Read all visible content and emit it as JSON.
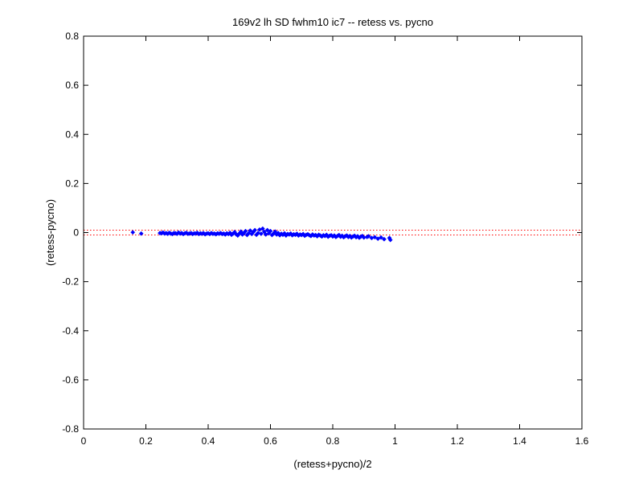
{
  "chart_data": {
    "type": "scatter",
    "title": "169v2 lh SD fwhm10 ic7 -- retess vs. pycno",
    "xlabel": "(retess+pycno)/2",
    "ylabel": "(retess-pycno)",
    "xlim": [
      0,
      1.6
    ],
    "ylim": [
      -0.8,
      0.8
    ],
    "xticks": [
      0,
      0.2,
      0.4,
      0.6,
      0.8,
      1,
      1.2,
      1.4,
      1.6
    ],
    "xtick_labels": [
      "0",
      "0.2",
      "0.4",
      "0.6",
      "0.8",
      "1",
      "1.2",
      "1.4",
      "1.6"
    ],
    "yticks": [
      -0.8,
      -0.6,
      -0.4,
      -0.2,
      0,
      0.2,
      0.4,
      0.6,
      0.8
    ],
    "ytick_labels": [
      "-0.8",
      "-0.6",
      "-0.4",
      "-0.2",
      "0",
      "0.2",
      "0.4",
      "0.6",
      "0.8"
    ],
    "grid": false,
    "reference_lines": [
      {
        "y": 0.01,
        "style": "dotted",
        "color": "#ff0000"
      },
      {
        "y": -0.01,
        "style": "dotted",
        "color": "#ff0000"
      }
    ],
    "series": [
      {
        "marker": "diamond",
        "color": "#0000ff",
        "points": [
          [
            0.158,
            0.001
          ],
          [
            0.185,
            -0.004
          ],
          [
            0.245,
            -0.002
          ],
          [
            0.25,
            -0.003
          ],
          [
            0.255,
            0.0
          ],
          [
            0.26,
            -0.004
          ],
          [
            0.265,
            -0.002
          ],
          [
            0.27,
            -0.005
          ],
          [
            0.275,
            -0.001
          ],
          [
            0.28,
            -0.004
          ],
          [
            0.285,
            -0.006
          ],
          [
            0.29,
            -0.002
          ],
          [
            0.295,
            -0.003
          ],
          [
            0.3,
            -0.005
          ],
          [
            0.305,
            0.0
          ],
          [
            0.31,
            -0.004
          ],
          [
            0.315,
            -0.002
          ],
          [
            0.32,
            -0.006
          ],
          [
            0.325,
            -0.003
          ],
          [
            0.33,
            -0.001
          ],
          [
            0.335,
            -0.005
          ],
          [
            0.34,
            -0.004
          ],
          [
            0.345,
            -0.002
          ],
          [
            0.35,
            -0.006
          ],
          [
            0.355,
            -0.003
          ],
          [
            0.36,
            -0.004
          ],
          [
            0.365,
            -0.001
          ],
          [
            0.37,
            -0.006
          ],
          [
            0.375,
            -0.003
          ],
          [
            0.38,
            -0.005
          ],
          [
            0.385,
            -0.002
          ],
          [
            0.39,
            -0.007
          ],
          [
            0.395,
            -0.004
          ],
          [
            0.4,
            -0.003
          ],
          [
            0.405,
            -0.006
          ],
          [
            0.41,
            -0.002
          ],
          [
            0.415,
            -0.005
          ],
          [
            0.42,
            -0.004
          ],
          [
            0.425,
            -0.007
          ],
          [
            0.43,
            -0.003
          ],
          [
            0.435,
            -0.005
          ],
          [
            0.44,
            -0.002
          ],
          [
            0.445,
            -0.006
          ],
          [
            0.45,
            -0.004
          ],
          [
            0.455,
            -0.008
          ],
          [
            0.46,
            -0.003
          ],
          [
            0.465,
            -0.006
          ],
          [
            0.47,
            -0.001
          ],
          [
            0.475,
            -0.009
          ],
          [
            0.48,
            -0.004
          ],
          [
            0.485,
            0.002
          ],
          [
            0.49,
            -0.007
          ],
          [
            0.495,
            -0.012
          ],
          [
            0.5,
            -0.004
          ],
          [
            0.505,
            0.004
          ],
          [
            0.51,
            -0.008
          ],
          [
            0.515,
            -0.002
          ],
          [
            0.52,
            0.006
          ],
          [
            0.525,
            -0.01
          ],
          [
            0.53,
            -0.003
          ],
          [
            0.535,
            0.008
          ],
          [
            0.54,
            -0.006
          ],
          [
            0.545,
            0.002
          ],
          [
            0.55,
            0.01
          ],
          [
            0.555,
            -0.009
          ],
          [
            0.56,
            -0.002
          ],
          [
            0.565,
            0.012
          ],
          [
            0.57,
            -0.005
          ],
          [
            0.575,
            0.016
          ],
          [
            0.58,
            0.003
          ],
          [
            0.585,
            -0.008
          ],
          [
            0.59,
            0.01
          ],
          [
            0.595,
            -0.003
          ],
          [
            0.6,
            0.006
          ],
          [
            0.605,
            -0.01
          ],
          [
            0.61,
            -0.004
          ],
          [
            0.615,
            0.004
          ],
          [
            0.62,
            -0.008
          ],
          [
            0.625,
            -0.002
          ],
          [
            0.63,
            -0.011
          ],
          [
            0.635,
            -0.005
          ],
          [
            0.64,
            -0.009
          ],
          [
            0.645,
            -0.003
          ],
          [
            0.65,
            -0.012
          ],
          [
            0.655,
            -0.006
          ],
          [
            0.66,
            -0.008
          ],
          [
            0.665,
            -0.004
          ],
          [
            0.67,
            -0.011
          ],
          [
            0.675,
            -0.007
          ],
          [
            0.68,
            -0.009
          ],
          [
            0.685,
            -0.005
          ],
          [
            0.69,
            -0.012
          ],
          [
            0.695,
            -0.008
          ],
          [
            0.7,
            -0.01
          ],
          [
            0.705,
            -0.006
          ],
          [
            0.71,
            -0.013
          ],
          [
            0.715,
            -0.009
          ],
          [
            0.72,
            -0.007
          ],
          [
            0.725,
            -0.011
          ],
          [
            0.73,
            -0.014
          ],
          [
            0.735,
            -0.008
          ],
          [
            0.74,
            -0.012
          ],
          [
            0.745,
            -0.01
          ],
          [
            0.75,
            -0.015
          ],
          [
            0.755,
            -0.009
          ],
          [
            0.76,
            -0.012
          ],
          [
            0.765,
            -0.016
          ],
          [
            0.77,
            -0.011
          ],
          [
            0.775,
            -0.014
          ],
          [
            0.78,
            -0.009
          ],
          [
            0.785,
            -0.017
          ],
          [
            0.79,
            -0.013
          ],
          [
            0.795,
            -0.011
          ],
          [
            0.8,
            -0.016
          ],
          [
            0.805,
            -0.012
          ],
          [
            0.81,
            -0.018
          ],
          [
            0.815,
            -0.014
          ],
          [
            0.82,
            -0.01
          ],
          [
            0.825,
            -0.017
          ],
          [
            0.83,
            -0.013
          ],
          [
            0.835,
            -0.019
          ],
          [
            0.84,
            -0.015
          ],
          [
            0.845,
            -0.012
          ],
          [
            0.85,
            -0.018
          ],
          [
            0.855,
            -0.014
          ],
          [
            0.86,
            -0.02
          ],
          [
            0.865,
            -0.016
          ],
          [
            0.87,
            -0.013
          ],
          [
            0.875,
            -0.019
          ],
          [
            0.88,
            -0.015
          ],
          [
            0.885,
            -0.021
          ],
          [
            0.89,
            -0.017
          ],
          [
            0.895,
            -0.014
          ],
          [
            0.9,
            -0.02
          ],
          [
            0.91,
            -0.018
          ],
          [
            0.915,
            -0.015
          ],
          [
            0.925,
            -0.022
          ],
          [
            0.935,
            -0.019
          ],
          [
            0.945,
            -0.025
          ],
          [
            0.955,
            -0.02
          ],
          [
            0.965,
            -0.027
          ],
          [
            0.982,
            -0.022
          ],
          [
            0.985,
            -0.03
          ]
        ]
      }
    ]
  }
}
